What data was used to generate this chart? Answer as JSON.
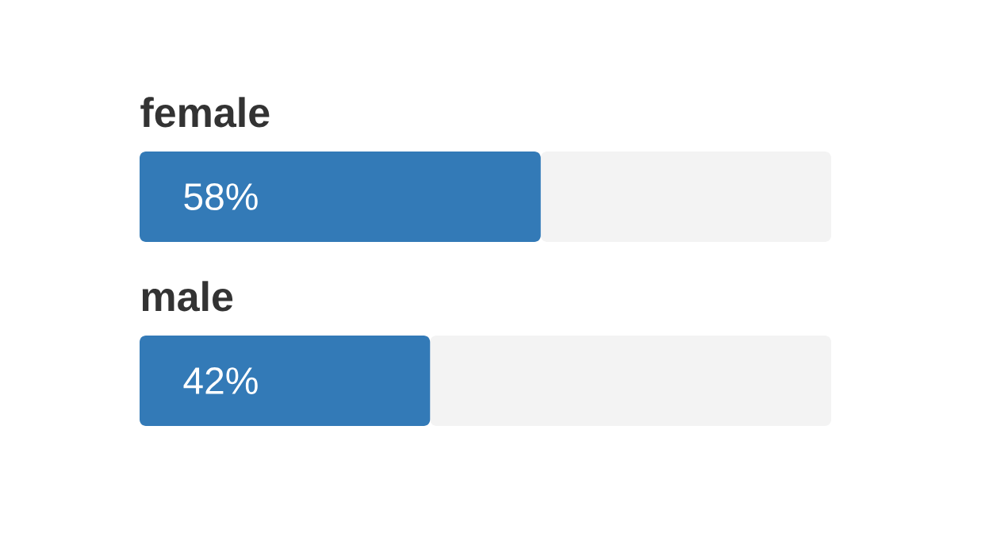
{
  "chart_data": {
    "type": "bar",
    "orientation": "horizontal",
    "stacked": true,
    "categories": [
      "female",
      "male"
    ],
    "series": [
      {
        "color": "#337ab7",
        "values": [
          58,
          42
        ],
        "value_labels": [
          "58%",
          "42%"
        ]
      },
      {
        "color": "#f3f3f3",
        "values": [
          42,
          58
        ]
      }
    ],
    "xlim": [
      0,
      100
    ]
  }
}
